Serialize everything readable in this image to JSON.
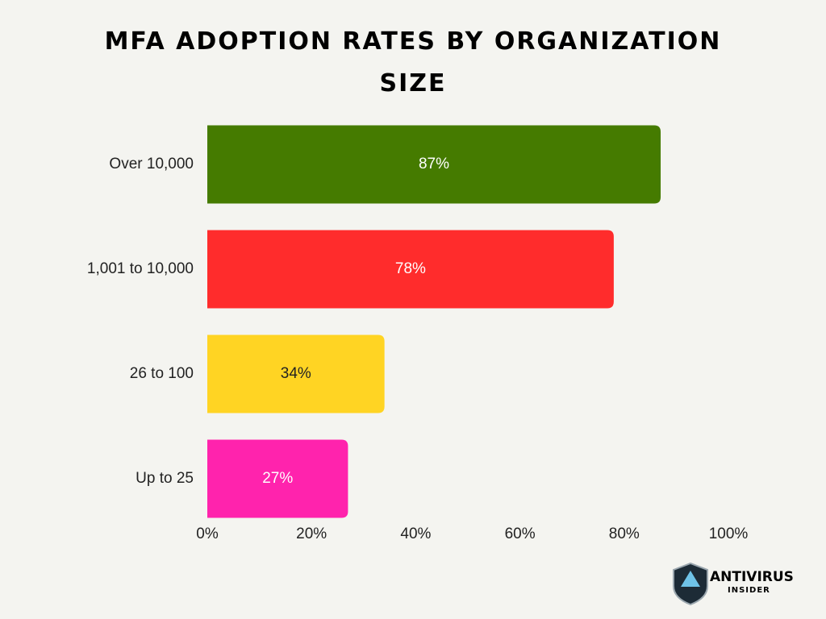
{
  "chart_data": {
    "type": "bar",
    "orientation": "horizontal",
    "title": "MFA ADOPTION RATES BY ORGANIZATION SIZE",
    "categories": [
      "Over 10,000",
      "1,001 to 10,000",
      "26 to 100",
      "Up to 25"
    ],
    "values": [
      87,
      78,
      34,
      27
    ],
    "value_labels": [
      "87%",
      "78%",
      "34%",
      "27%"
    ],
    "colors": [
      "#457b00",
      "#ff2c2c",
      "#ffd423",
      "#ff23ad"
    ],
    "xlim": [
      0,
      100
    ],
    "xticks": [
      {
        "value": 0,
        "label": "0%"
      },
      {
        "value": 20,
        "label": "20%"
      },
      {
        "value": 40,
        "label": "40%"
      },
      {
        "value": 60,
        "label": "60%"
      },
      {
        "value": 80,
        "label": "80%"
      },
      {
        "value": 100,
        "label": "100%"
      }
    ],
    "grid": false
  },
  "logo": {
    "name": "ANTIVIRUS",
    "subname": "INSIDER"
  }
}
